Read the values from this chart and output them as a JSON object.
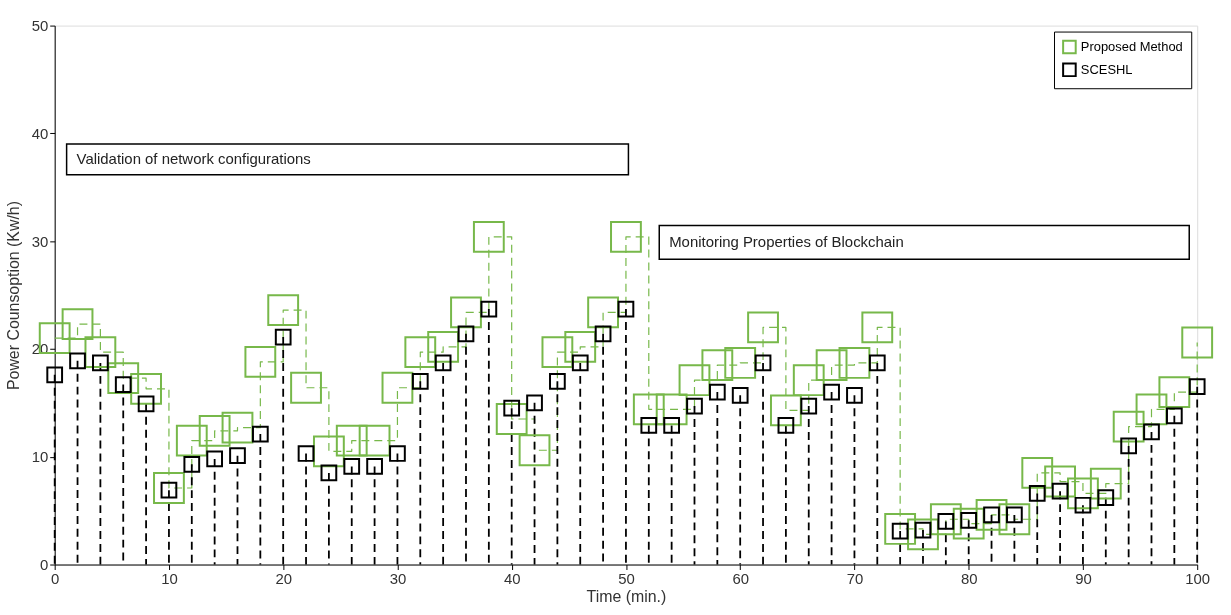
{
  "chart_data": {
    "type": "step",
    "xlabel": "Time (min.)",
    "ylabel": "Power Counsoption (Kw/h)",
    "x": [
      0,
      2,
      4,
      6,
      8,
      10,
      12,
      14,
      16,
      18,
      20,
      22,
      24,
      26,
      28,
      30,
      32,
      34,
      36,
      38,
      40,
      42,
      44,
      46,
      48,
      50,
      52,
      54,
      56,
      58,
      60,
      62,
      64,
      66,
      68,
      70,
      72,
      74,
      76,
      78,
      80,
      82,
      84,
      86,
      88,
      90,
      92,
      94,
      96,
      98,
      100
    ],
    "series": [
      {
        "name": "Proposed Method",
        "color": "#77b84a",
        "line_style": "dashed",
        "values": [
          21.0,
          22.3,
          19.7,
          17.3,
          16.3,
          7.1,
          11.5,
          12.4,
          12.7,
          18.8,
          23.6,
          16.4,
          10.5,
          11.5,
          11.5,
          16.4,
          19.7,
          20.2,
          23.4,
          30.4,
          13.5,
          10.6,
          19.7,
          20.2,
          23.4,
          30.4,
          14.4,
          14.4,
          17.1,
          18.5,
          18.7,
          22.0,
          14.3,
          17.1,
          18.5,
          18.7,
          22.0,
          3.3,
          2.8,
          4.2,
          3.8,
          4.6,
          4.2,
          8.5,
          7.7,
          6.6,
          7.5,
          12.8,
          14.4,
          16.0,
          20.6
        ]
      },
      {
        "name": "SCESHL",
        "type": "lollipop",
        "color": "#000000",
        "line_style": "dashed",
        "values": [
          17.6,
          18.9,
          18.7,
          16.7,
          14.9,
          6.9,
          9.3,
          9.8,
          10.1,
          12.1,
          21.1,
          10.3,
          8.5,
          9.1,
          9.1,
          10.3,
          17.0,
          18.7,
          21.4,
          23.7,
          14.5,
          15.0,
          17.0,
          18.7,
          21.4,
          23.7,
          12.9,
          12.9,
          14.7,
          16.0,
          15.7,
          18.7,
          12.9,
          14.7,
          16.0,
          15.7,
          18.7,
          3.1,
          3.2,
          4.0,
          4.1,
          4.6,
          4.6,
          6.6,
          6.8,
          5.5,
          6.2,
          11.0,
          12.3,
          13.8,
          16.5
        ]
      }
    ],
    "marker": "square",
    "annotations": [
      "Validation of network configurations",
      "Monitoring Properties of Blockchain"
    ],
    "xlim": [
      0,
      100
    ],
    "xticks": [
      0,
      10,
      20,
      30,
      40,
      50,
      60,
      70,
      80,
      90,
      100
    ],
    "ylim": [
      0,
      50
    ],
    "yticks": [
      0,
      10,
      20,
      30,
      40,
      50
    ],
    "grid": false,
    "legend": "top right"
  }
}
